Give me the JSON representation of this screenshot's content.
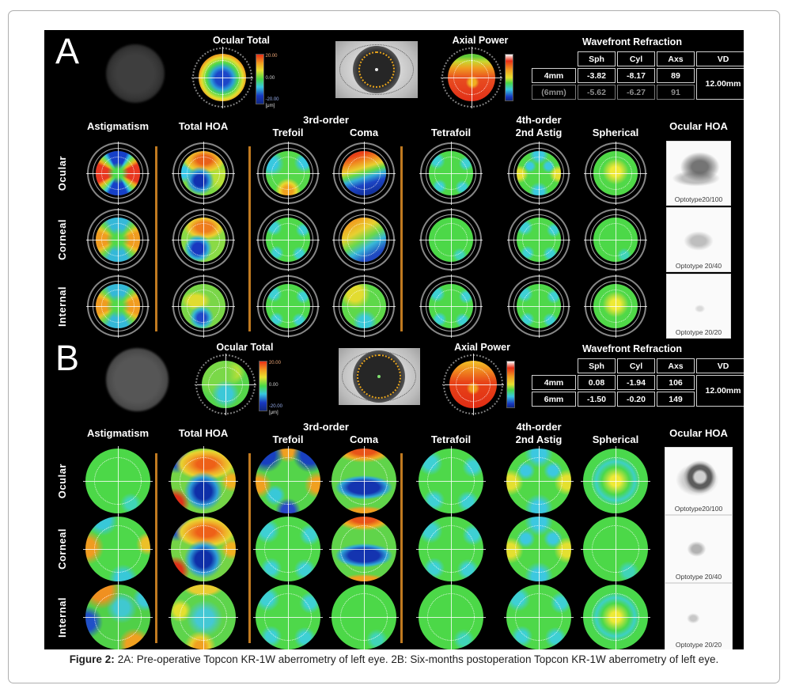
{
  "caption": {
    "label": "Figure 2:",
    "text": "2A: Pre-operative Topcon KR-1W aberrometry of left eye. 2B: Six-months postoperation Topcon KR-1W aberrometry of left eye."
  },
  "shared": {
    "column_headers": [
      "Astigmatism",
      "Total HOA",
      "Trefoil",
      "Coma",
      "Tetrafoil",
      "2nd Astig",
      "Spherical"
    ],
    "group_headers": {
      "third_order": "3rd-order",
      "fourth_order": "4th-order"
    },
    "right_header": "Ocular HOA",
    "row_labels": [
      "Ocular",
      "Corneal",
      "Internal"
    ],
    "scale": {
      "max": "20.00",
      "mid": "0.00",
      "min": "-20.00",
      "unit": "[μm]"
    }
  },
  "panels": [
    {
      "label": "A",
      "ocular_total_title": "Ocular Total",
      "axial_power_title": "Axial Power",
      "wavefront": {
        "title": "Wavefront Refraction",
        "columns": [
          "Sph",
          "Cyl",
          "Axs",
          "VD"
        ],
        "rows": [
          {
            "zone": "4mm",
            "sph": "-3.82",
            "cyl": "-8.17",
            "axs": "89"
          },
          {
            "zone": "(6mm)",
            "sph": "-5.62",
            "cyl": "-6.27",
            "axs": "91"
          }
        ],
        "vd": "12.00mm"
      },
      "optotypes": [
        "Optotype20/100",
        "Optotype 20/40",
        "Optotype 20/20"
      ],
      "optoblobs": [
        "blob-a1",
        "blob-a2",
        "blob-a3"
      ],
      "maps": [
        [
          "p-astig1",
          "p-hoa1",
          "p-tref1",
          "p-coma1",
          "p-gcyan",
          "p-x2",
          "p-ycenter"
        ],
        [
          "p-astig2",
          "p-hoa2",
          "p-gcyan",
          "p-coma2",
          "p-green",
          "p-gcyan",
          "p-green"
        ],
        [
          "p-astig2",
          "p-hoa3",
          "p-gcyan",
          "p-coma3",
          "p-gcyan",
          "p-gcyan",
          "p-ycenter"
        ]
      ]
    },
    {
      "label": "B",
      "ocular_total_title": "Ocular Total",
      "axial_power_title": "Axial Power",
      "wavefront": {
        "title": "Wavefront Refraction",
        "columns": [
          "Sph",
          "Cyl",
          "Axs",
          "VD"
        ],
        "rows": [
          {
            "zone": "4mm",
            "sph": "0.08",
            "cyl": "-1.94",
            "axs": "106"
          },
          {
            "zone": "6mm",
            "sph": "-1.50",
            "cyl": "-0.20",
            "axs": "149"
          }
        ],
        "vd": "12.00mm"
      },
      "optotypes": [
        "Optotype20/100",
        "Optotype 20/40",
        "Optotype 20/20"
      ],
      "optoblobs": [
        "blob-b1",
        "blob-b2",
        "blob-b3"
      ],
      "maps": [
        [
          "p-green",
          "p-bhoa",
          "p-btref",
          "p-bcoma",
          "p-gcyan",
          "p-x2",
          "p-yring"
        ],
        [
          "p-bastC",
          "p-bhoa",
          "p-gcyan",
          "p-bcoma",
          "p-gcyan",
          "p-x2",
          "p-green"
        ],
        [
          "p-bastI",
          "p-bhoaI",
          "p-gcyan",
          "p-green",
          "p-green",
          "p-gcyan",
          "p-yring"
        ]
      ]
    }
  ]
}
